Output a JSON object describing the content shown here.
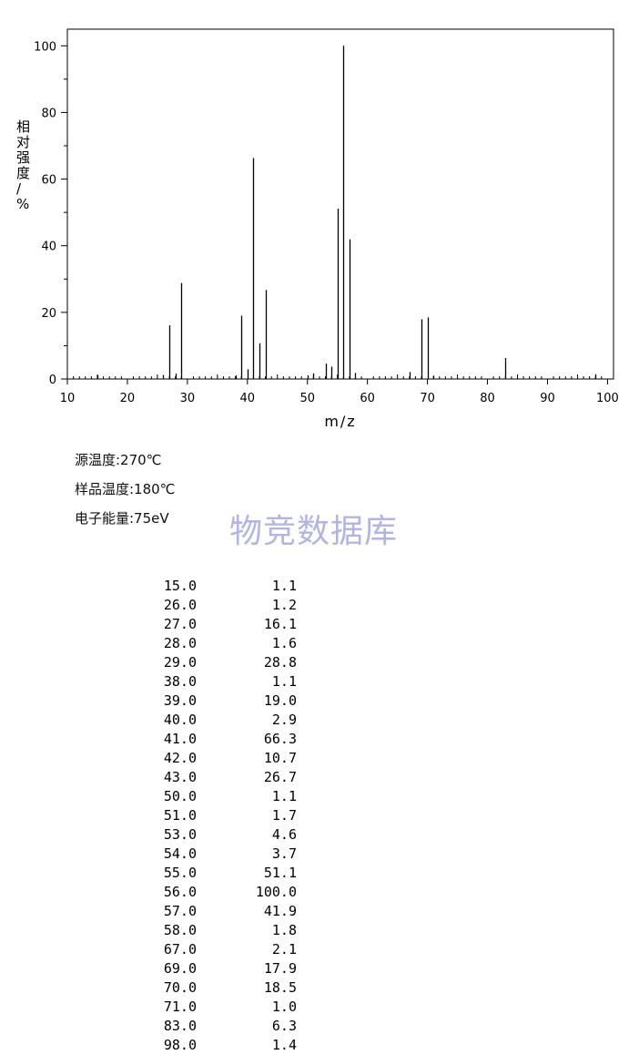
{
  "chart_data": {
    "type": "bar",
    "xlabel": "m/z",
    "ylabel": "相对强度/%",
    "xlim": [
      10,
      101
    ],
    "ylim": [
      0,
      105
    ],
    "x_ticks": [
      10,
      20,
      30,
      40,
      50,
      60,
      70,
      80,
      90,
      100
    ],
    "y_ticks": [
      0,
      20,
      40,
      60,
      80,
      100
    ],
    "x": [
      15,
      26,
      27,
      28,
      29,
      38,
      39,
      40,
      41,
      42,
      43,
      50,
      51,
      53,
      54,
      55,
      56,
      57,
      58,
      67,
      69,
      70,
      71,
      83,
      98
    ],
    "values": [
      1.1,
      1.2,
      16.1,
      1.6,
      28.8,
      1.1,
      19.0,
      2.9,
      66.3,
      10.7,
      26.7,
      1.1,
      1.7,
      4.6,
      3.7,
      51.1,
      100.0,
      41.9,
      1.8,
      2.1,
      17.9,
      18.5,
      1.0,
      6.3,
      1.4
    ],
    "grid": false
  },
  "conditions": {
    "source_temp": "源温度:270℃",
    "sample_temp": "样品温度:180℃",
    "electron_energy": "电子能量:75eV"
  },
  "watermark": "物竞数据库",
  "peak_table": [
    {
      "mz": "15.0",
      "intensity": "1.1"
    },
    {
      "mz": "26.0",
      "intensity": "1.2"
    },
    {
      "mz": "27.0",
      "intensity": "16.1"
    },
    {
      "mz": "28.0",
      "intensity": "1.6"
    },
    {
      "mz": "29.0",
      "intensity": "28.8"
    },
    {
      "mz": "38.0",
      "intensity": "1.1"
    },
    {
      "mz": "39.0",
      "intensity": "19.0"
    },
    {
      "mz": "40.0",
      "intensity": "2.9"
    },
    {
      "mz": "41.0",
      "intensity": "66.3"
    },
    {
      "mz": "42.0",
      "intensity": "10.7"
    },
    {
      "mz": "43.0",
      "intensity": "26.7"
    },
    {
      "mz": "50.0",
      "intensity": "1.1"
    },
    {
      "mz": "51.0",
      "intensity": "1.7"
    },
    {
      "mz": "53.0",
      "intensity": "4.6"
    },
    {
      "mz": "54.0",
      "intensity": "3.7"
    },
    {
      "mz": "55.0",
      "intensity": "51.1"
    },
    {
      "mz": "56.0",
      "intensity": "100.0"
    },
    {
      "mz": "57.0",
      "intensity": "41.9"
    },
    {
      "mz": "58.0",
      "intensity": "1.8"
    },
    {
      "mz": "67.0",
      "intensity": "2.1"
    },
    {
      "mz": "69.0",
      "intensity": "17.9"
    },
    {
      "mz": "70.0",
      "intensity": "18.5"
    },
    {
      "mz": "71.0",
      "intensity": "1.0"
    },
    {
      "mz": "83.0",
      "intensity": "6.3"
    },
    {
      "mz": "98.0",
      "intensity": "1.4"
    }
  ]
}
